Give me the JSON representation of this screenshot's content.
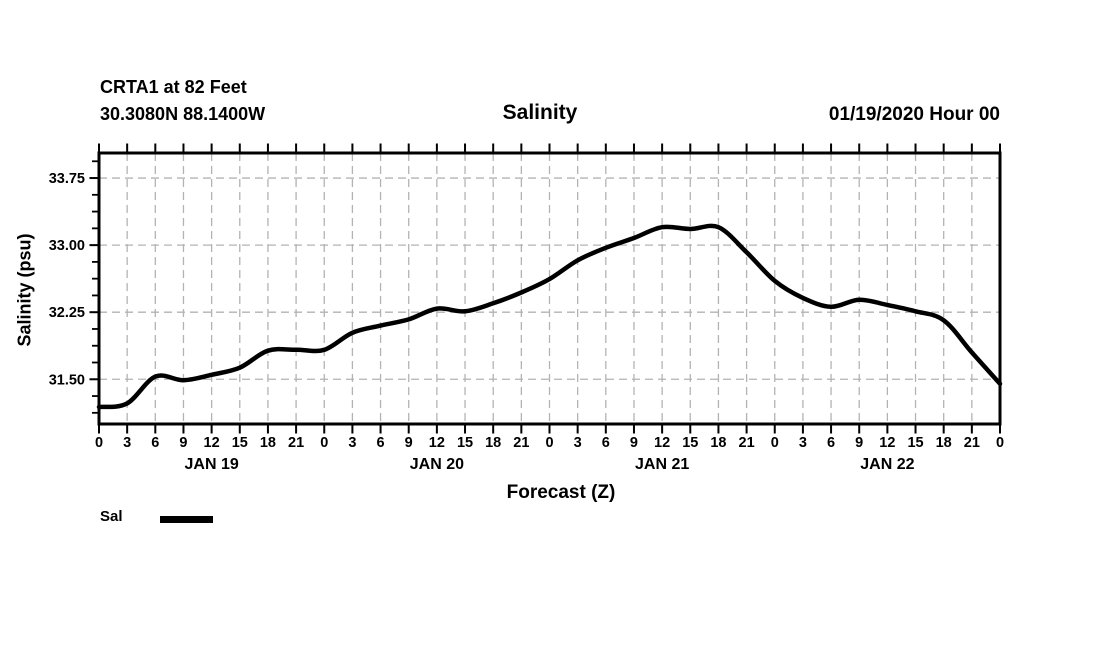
{
  "header": {
    "station": "CRTA1 at 82 Feet",
    "coordinates": "30.3080N 88.1400W",
    "title": "Salinity",
    "run_datetime": "01/19/2020 Hour 00"
  },
  "chart_data": {
    "type": "line",
    "title": "Salinity",
    "xlabel": "Forecast (Z)",
    "ylabel": "Salinity (psu)",
    "series": [
      {
        "name": "Sal",
        "color": "#000000",
        "x_hours": [
          0,
          3,
          6,
          9,
          12,
          15,
          18,
          21,
          24,
          27,
          30,
          33,
          36,
          39,
          42,
          45,
          48,
          51,
          54,
          57,
          60,
          63,
          66,
          69,
          72,
          75,
          78,
          81,
          84,
          87,
          90,
          93,
          96
        ],
        "values": [
          31.19,
          31.23,
          31.53,
          31.49,
          31.55,
          31.63,
          31.82,
          31.83,
          31.83,
          32.02,
          32.1,
          32.17,
          32.29,
          32.26,
          32.35,
          32.47,
          32.62,
          32.83,
          32.97,
          33.08,
          33.2,
          33.18,
          33.2,
          32.92,
          32.6,
          32.41,
          32.31,
          32.39,
          32.33,
          32.26,
          32.16,
          31.8,
          31.45
        ]
      }
    ],
    "x_axis": {
      "lim_hours": [
        0,
        96
      ],
      "tick_step_hours": 3,
      "hour_label_mod": 24,
      "day_labels": [
        "JAN 19",
        "JAN 20",
        "JAN 21",
        "JAN 22"
      ],
      "day_label_center_hours": [
        12,
        36,
        60,
        84
      ]
    },
    "y_axis": {
      "lim": [
        31.0,
        34.03
      ],
      "major_ticks": [
        31.5,
        32.25,
        33.0,
        33.75
      ],
      "major_tick_labels": [
        "31.50",
        "32.25",
        "33.00",
        "33.75"
      ],
      "minor_tick_step": 0.1875
    },
    "grid": {
      "color": "#b3b3b3",
      "dash": "8 5",
      "vertical_every_hours": 3,
      "horizontal_at_major_ticks": true
    },
    "legend": {
      "position": "bottom-left",
      "entries": [
        {
          "label": "Sal",
          "color": "#000000"
        }
      ]
    }
  }
}
